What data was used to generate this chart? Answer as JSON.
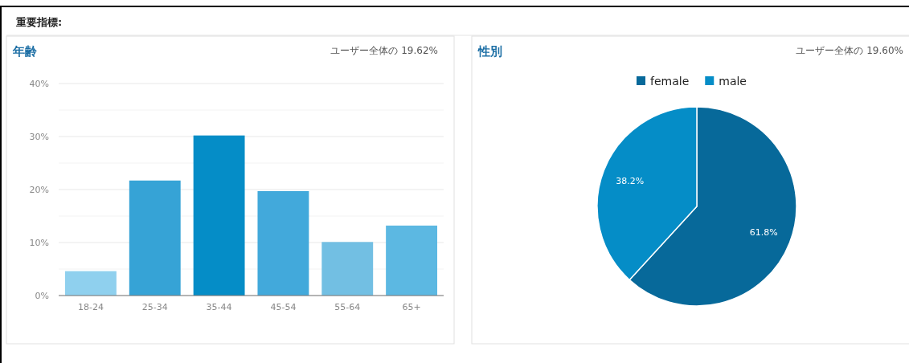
{
  "chart_data": [
    {
      "type": "bar",
      "title": "年齢",
      "annotations": [
        "重要指標:",
        "ユーザー全体の 19.62%"
      ],
      "categories": [
        "18-24",
        "25-34",
        "35-44",
        "45-54",
        "55-64",
        "65+"
      ],
      "values": [
        4.6,
        21.7,
        30.2,
        19.7,
        10.1,
        13.2
      ],
      "colors": [
        "#8fd0ee",
        "#36a3d6",
        "#058dc7",
        "#42a9db",
        "#72bfe3",
        "#5cb8e2"
      ],
      "ylim": [
        0,
        40
      ],
      "yticks": [
        {
          "value": 0,
          "label": "0%"
        },
        {
          "value": 5,
          "label": null
        },
        {
          "value": 10,
          "label": "10%"
        },
        {
          "value": 15,
          "label": null
        },
        {
          "value": 20,
          "label": "20%"
        },
        {
          "value": 25,
          "label": null
        },
        {
          "value": 30,
          "label": "30%"
        },
        {
          "value": 35,
          "label": null
        },
        {
          "value": 40,
          "label": "40%"
        }
      ],
      "grid": "y"
    },
    {
      "type": "pie",
      "title": "性別",
      "annotations": [
        "ユーザー全体の 19.60%"
      ],
      "categories": [
        "female",
        "male"
      ],
      "values": [
        61.8,
        38.2
      ],
      "colors": [
        "#07699a",
        "#058dc7"
      ],
      "value_labels": [
        "61.8%",
        "38.2%"
      ],
      "legend": "top"
    }
  ]
}
